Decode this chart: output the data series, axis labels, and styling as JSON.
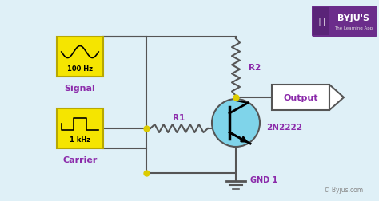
{
  "bg_color": "#dff0f7",
  "wire_color": "#555555",
  "yellow_box_color": "#f5e500",
  "yellow_box_edge": "#b8a800",
  "label_color": "#8b2aaa",
  "transistor_color": "#7fd4ea",
  "transistor_edge": "#555555",
  "output_box_color": "#ffffff",
  "output_box_edge": "#555555",
  "dot_color": "#ddcc00",
  "byju_purple": "#6b2d8b",
  "r1_label": "R1",
  "r2_label": "R2",
  "signal_label": "Signal",
  "carrier_label": "Carrier",
  "transistor_label": "2N2222",
  "output_label": "Output",
  "gnd_label": "GND 1",
  "signal_freq": "100 Hz",
  "carrier_freq": "1 kHz",
  "copyright": "© Byjus.com"
}
